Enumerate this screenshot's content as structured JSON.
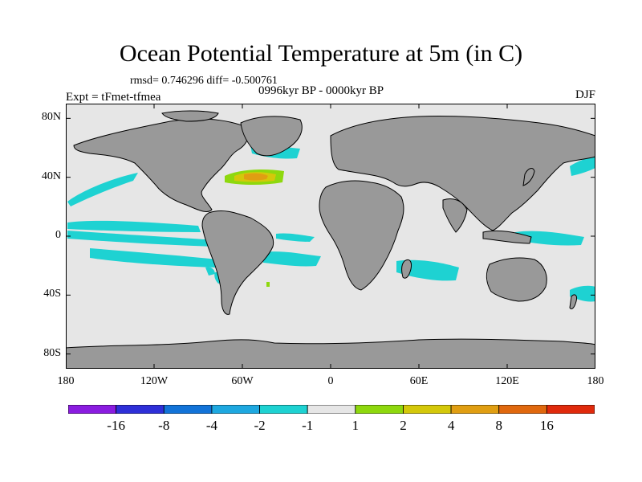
{
  "title": "Ocean Potential Temperature at 5m (in C)",
  "stats_line": "rmsd= 0.746296 diff= -0.500761",
  "experiment": "Expt = tFmet-tfmea",
  "period": "0996kyr BP - 0000kyr BP",
  "season": "DJF",
  "map": {
    "projection": "cylindrical-equidistant",
    "lon_range": [
      -180,
      180
    ],
    "lat_range": [
      -90,
      90
    ],
    "lon_ticks": [
      {
        "value": -180,
        "label": "180"
      },
      {
        "value": -120,
        "label": "120W"
      },
      {
        "value": -60,
        "label": "60W"
      },
      {
        "value": 0,
        "label": "0"
      },
      {
        "value": 60,
        "label": "60E"
      },
      {
        "value": 120,
        "label": "120E"
      },
      {
        "value": 180,
        "label": "180"
      }
    ],
    "lat_ticks": [
      {
        "value": 80,
        "label": "80N"
      },
      {
        "value": 40,
        "label": "40N"
      },
      {
        "value": 0,
        "label": "0"
      },
      {
        "value": -40,
        "label": "40S"
      },
      {
        "value": -80,
        "label": "80S"
      }
    ],
    "colors": {
      "background": "#e6e6e6",
      "land": "#999999",
      "coast": "#000000"
    }
  },
  "colorbar": {
    "colors": [
      "#8a1ce0",
      "#2e2fd8",
      "#1273d8",
      "#1ea8e0",
      "#1ed2d2",
      "#e6e6e6",
      "#8ed80e",
      "#d4c80a",
      "#e09e12",
      "#e0680e",
      "#e02a0c"
    ],
    "labels": [
      "-16",
      "-8",
      "-4",
      "-2",
      "-1",
      "1",
      "2",
      "4",
      "8",
      "16"
    ]
  }
}
